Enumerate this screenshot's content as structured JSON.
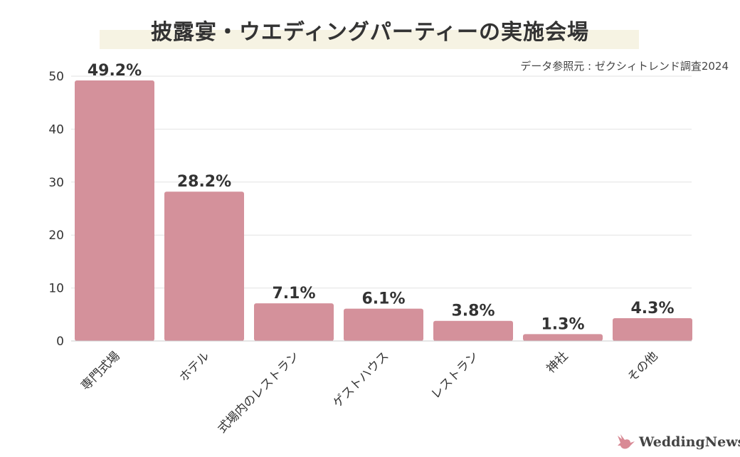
{
  "chart_data": {
    "type": "bar",
    "title": "披露宴・ウエディングパーティーの実施会場",
    "source": "データ参照元 : ゼクシィトレンド調査2024",
    "categories": [
      "専門式場",
      "ホテル",
      "式場内のレストラン",
      "ゲストハウス",
      "レストラン",
      "神社",
      "その他"
    ],
    "values": [
      49.2,
      28.2,
      7.1,
      6.1,
      3.8,
      1.3,
      4.3
    ],
    "data_labels": [
      "49.2%",
      "28.2%",
      "7.1%",
      "6.1%",
      "3.8%",
      "1.3%",
      "4.3%"
    ],
    "yticks": [
      0,
      10,
      20,
      30,
      40,
      50
    ],
    "ylim": [
      0,
      50
    ],
    "xlabel": "",
    "ylabel": "",
    "grid": true,
    "bar_color": "#d4919b"
  },
  "brand": {
    "name": "WeddingNews",
    "color": "#d98a95"
  }
}
